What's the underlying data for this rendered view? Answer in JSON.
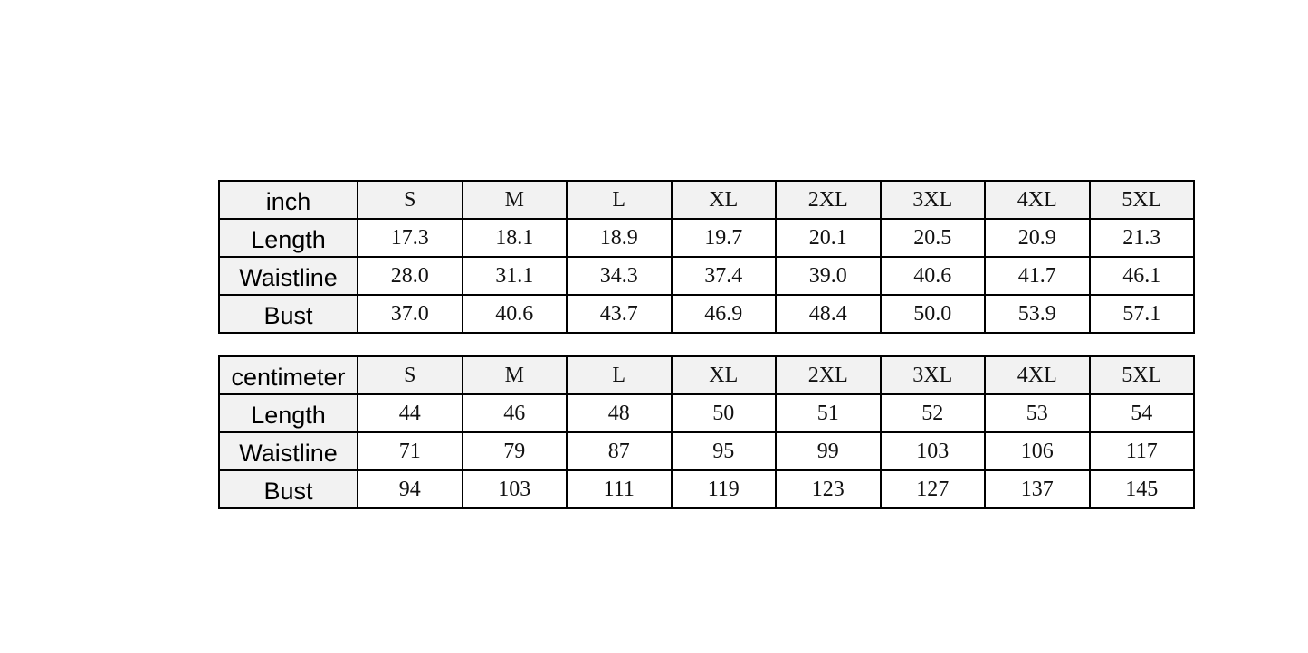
{
  "sizes": [
    "S",
    "M",
    "L",
    "XL",
    "2XL",
    "3XL",
    "4XL",
    "5XL"
  ],
  "tables": [
    {
      "unit": "inch",
      "rows": [
        {
          "label": "Length",
          "values": [
            "17.3",
            "18.1",
            "18.9",
            "19.7",
            "20.1",
            "20.5",
            "20.9",
            "21.3"
          ]
        },
        {
          "label": "Waistline",
          "values": [
            "28.0",
            "31.1",
            "34.3",
            "37.4",
            "39.0",
            "40.6",
            "41.7",
            "46.1"
          ]
        },
        {
          "label": "Bust",
          "values": [
            "37.0",
            "40.6",
            "43.7",
            "46.9",
            "48.4",
            "50.0",
            "53.9",
            "57.1"
          ]
        }
      ]
    },
    {
      "unit": "centimeter",
      "rows": [
        {
          "label": "Length",
          "values": [
            "44",
            "46",
            "48",
            "50",
            "51",
            "52",
            "53",
            "54"
          ]
        },
        {
          "label": "Waistline",
          "values": [
            "71",
            "79",
            "87",
            "95",
            "99",
            "103",
            "106",
            "117"
          ]
        },
        {
          "label": "Bust",
          "values": [
            "94",
            "103",
            "111",
            "119",
            "123",
            "127",
            "137",
            "145"
          ]
        }
      ]
    }
  ],
  "colors": {
    "header_bg": "#f2f2f2",
    "cell_bg": "#ffffff",
    "border": "#000000"
  }
}
